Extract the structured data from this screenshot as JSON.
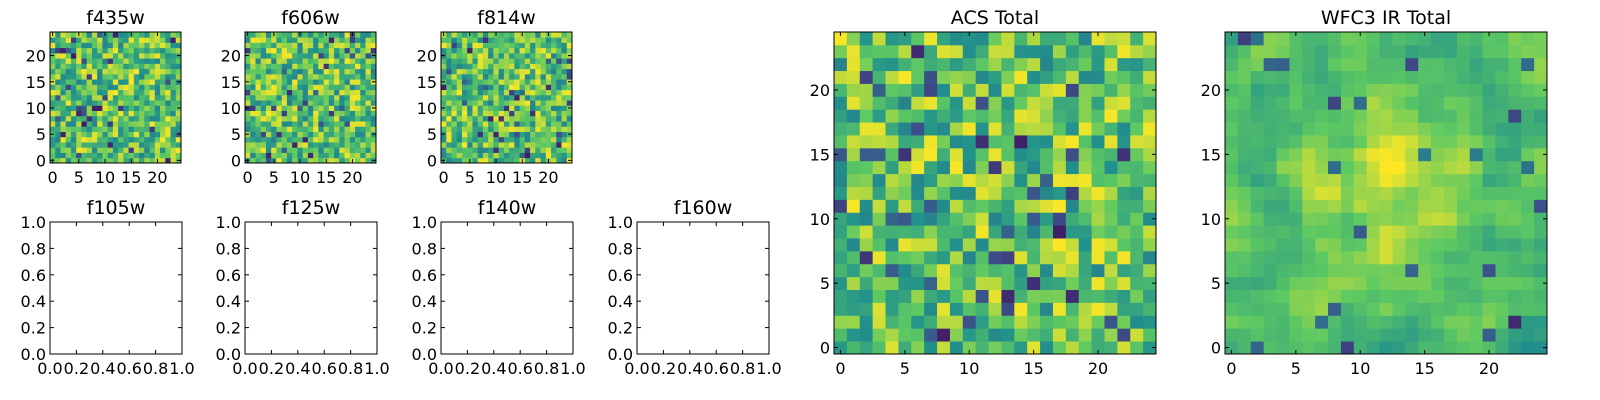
{
  "figure": {
    "colormap": "viridis",
    "colormap_stops": [
      "#440154",
      "#3b528b",
      "#21918c",
      "#5ec962",
      "#fde725"
    ]
  },
  "chart_data": [
    {
      "id": "f435w",
      "type": "heatmap",
      "title": "f435w",
      "grid_size": 25,
      "xlim": [
        -0.5,
        24.5
      ],
      "ylim": [
        -0.5,
        24.5
      ],
      "xticks": [
        "0",
        "5",
        "10",
        "15",
        "20"
      ],
      "yticks": [
        "0",
        "5",
        "10",
        "15",
        "20"
      ],
      "xtick_values": [
        0,
        5,
        10,
        15,
        20
      ],
      "ytick_values": [
        0,
        5,
        10,
        15,
        20
      ],
      "pixel_values": "noisy random field (approx. values 0-1, mostly 0.4-0.9)",
      "seed": 11,
      "smooth": 0
    },
    {
      "id": "f606w",
      "type": "heatmap",
      "title": "f606w",
      "grid_size": 25,
      "xlim": [
        -0.5,
        24.5
      ],
      "ylim": [
        -0.5,
        24.5
      ],
      "xticks": [
        "0",
        "5",
        "10",
        "15",
        "20"
      ],
      "yticks": [
        "0",
        "5",
        "10",
        "15",
        "20"
      ],
      "xtick_values": [
        0,
        5,
        10,
        15,
        20
      ],
      "ytick_values": [
        0,
        5,
        10,
        15,
        20
      ],
      "pixel_values": "noisy random field",
      "seed": 23,
      "smooth": 0
    },
    {
      "id": "f814w",
      "type": "heatmap",
      "title": "f814w",
      "grid_size": 25,
      "xlim": [
        -0.5,
        24.5
      ],
      "ylim": [
        -0.5,
        24.5
      ],
      "xticks": [
        "0",
        "5",
        "10",
        "15",
        "20"
      ],
      "yticks": [
        "0",
        "5",
        "10",
        "15",
        "20"
      ],
      "xtick_values": [
        0,
        5,
        10,
        15,
        20
      ],
      "ytick_values": [
        0,
        5,
        10,
        15,
        20
      ],
      "pixel_values": "noisy random field",
      "seed": 37,
      "smooth": 0
    },
    {
      "id": "f105w",
      "type": "empty",
      "title": "f105w",
      "xlim": [
        0,
        1
      ],
      "ylim": [
        0,
        1
      ],
      "xticks": [
        "0.0",
        "0.2",
        "0.4",
        "0.6",
        "0.8",
        "1.0"
      ],
      "yticks": [
        "0.0",
        "0.2",
        "0.4",
        "0.6",
        "0.8",
        "1.0"
      ],
      "xtick_values": [
        0,
        0.2,
        0.4,
        0.6,
        0.8,
        1.0
      ],
      "ytick_values": [
        0,
        0.2,
        0.4,
        0.6,
        0.8,
        1.0
      ]
    },
    {
      "id": "f125w",
      "type": "empty",
      "title": "f125w",
      "xlim": [
        0,
        1
      ],
      "ylim": [
        0,
        1
      ],
      "xticks": [
        "0.0",
        "0.2",
        "0.4",
        "0.6",
        "0.8",
        "1.0"
      ],
      "yticks": [
        "0.0",
        "0.2",
        "0.4",
        "0.6",
        "0.8",
        "1.0"
      ],
      "xtick_values": [
        0,
        0.2,
        0.4,
        0.6,
        0.8,
        1.0
      ],
      "ytick_values": [
        0,
        0.2,
        0.4,
        0.6,
        0.8,
        1.0
      ]
    },
    {
      "id": "f140w",
      "type": "empty",
      "title": "f140w",
      "xlim": [
        0,
        1
      ],
      "ylim": [
        0,
        1
      ],
      "xticks": [
        "0.0",
        "0.2",
        "0.4",
        "0.6",
        "0.8",
        "1.0"
      ],
      "yticks": [
        "0.0",
        "0.2",
        "0.4",
        "0.6",
        "0.8",
        "1.0"
      ],
      "xtick_values": [
        0,
        0.2,
        0.4,
        0.6,
        0.8,
        1.0
      ],
      "ytick_values": [
        0,
        0.2,
        0.4,
        0.6,
        0.8,
        1.0
      ]
    },
    {
      "id": "f160w",
      "type": "empty",
      "title": "f160w",
      "xlim": [
        0,
        1
      ],
      "ylim": [
        0,
        1
      ],
      "xticks": [
        "0.0",
        "0.2",
        "0.4",
        "0.6",
        "0.8",
        "1.0"
      ],
      "yticks": [
        "0.0",
        "0.2",
        "0.4",
        "0.6",
        "0.8",
        "1.0"
      ],
      "xtick_values": [
        0,
        0.2,
        0.4,
        0.6,
        0.8,
        1.0
      ],
      "ytick_values": [
        0,
        0.2,
        0.4,
        0.6,
        0.8,
        1.0
      ]
    },
    {
      "id": "acs_total",
      "type": "heatmap",
      "title": "ACS Total",
      "grid_size": 25,
      "xlim": [
        -0.5,
        24.5
      ],
      "ylim": [
        -0.5,
        24.5
      ],
      "xticks": [
        "0",
        "5",
        "10",
        "15",
        "20"
      ],
      "yticks": [
        "0",
        "5",
        "10",
        "15",
        "20"
      ],
      "xtick_values": [
        0,
        5,
        10,
        15,
        20
      ],
      "ytick_values": [
        0,
        5,
        10,
        15,
        20
      ],
      "pixel_values": "noisy random field, mostly green-yellow with a few dark pixels",
      "seed": 51,
      "smooth": 0
    },
    {
      "id": "wfc3_ir_total",
      "type": "heatmap",
      "title": "WFC3 IR Total",
      "grid_size": 25,
      "xlim": [
        -0.5,
        24.5
      ],
      "ylim": [
        -0.5,
        24.5
      ],
      "xticks": [
        "0",
        "5",
        "10",
        "15",
        "20"
      ],
      "yticks": [
        "0",
        "5",
        "10",
        "15",
        "20"
      ],
      "xtick_values": [
        0,
        5,
        10,
        15,
        20
      ],
      "ytick_values": [
        0,
        5,
        10,
        15,
        20
      ],
      "pixel_values": "smoother random field with bright central blob",
      "seed": 77,
      "smooth": 1
    }
  ]
}
